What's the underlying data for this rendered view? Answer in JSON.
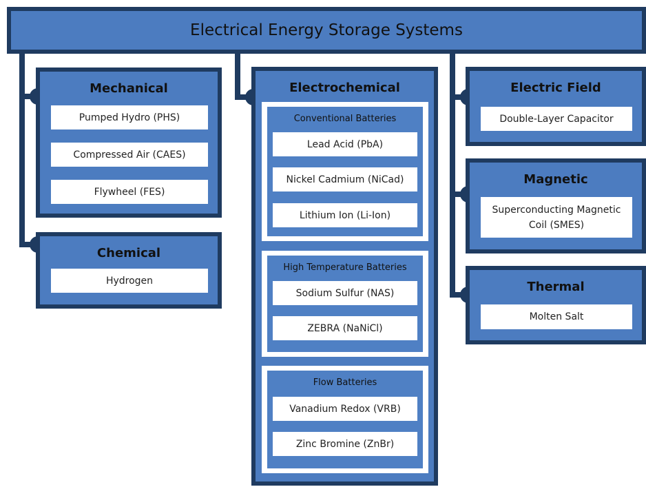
{
  "title": "Electrical Energy Storage Systems",
  "categories": [
    {
      "name": "Mechanical",
      "items": [
        "Pumped Hydro (PHS)",
        "Compressed Air (CAES)",
        "Flywheel (FES)"
      ]
    },
    {
      "name": "Chemical",
      "items": [
        "Hydrogen"
      ]
    },
    {
      "name": "Electrochemical",
      "groups": [
        {
          "name": "Conventional Batteries",
          "items": [
            "Lead Acid (PbA)",
            "Nickel Cadmium (NiCad)",
            "Lithium Ion (Li-Ion)"
          ]
        },
        {
          "name": "High Temperature Batteries",
          "items": [
            "Sodium Sulfur (NAS)",
            "ZEBRA (NaNiCl)"
          ]
        },
        {
          "name": "Flow Batteries",
          "items": [
            "Vanadium Redox (VRB)",
            "Zinc Bromine (ZnBr)"
          ]
        }
      ]
    },
    {
      "name": "Electric Field",
      "items": [
        "Double-Layer Capacitor"
      ]
    },
    {
      "name": "Magnetic",
      "items": [
        "Superconducting Magnetic Coil (SMES)"
      ]
    },
    {
      "name": "Thermal",
      "items": [
        "Molten Salt"
      ]
    }
  ]
}
